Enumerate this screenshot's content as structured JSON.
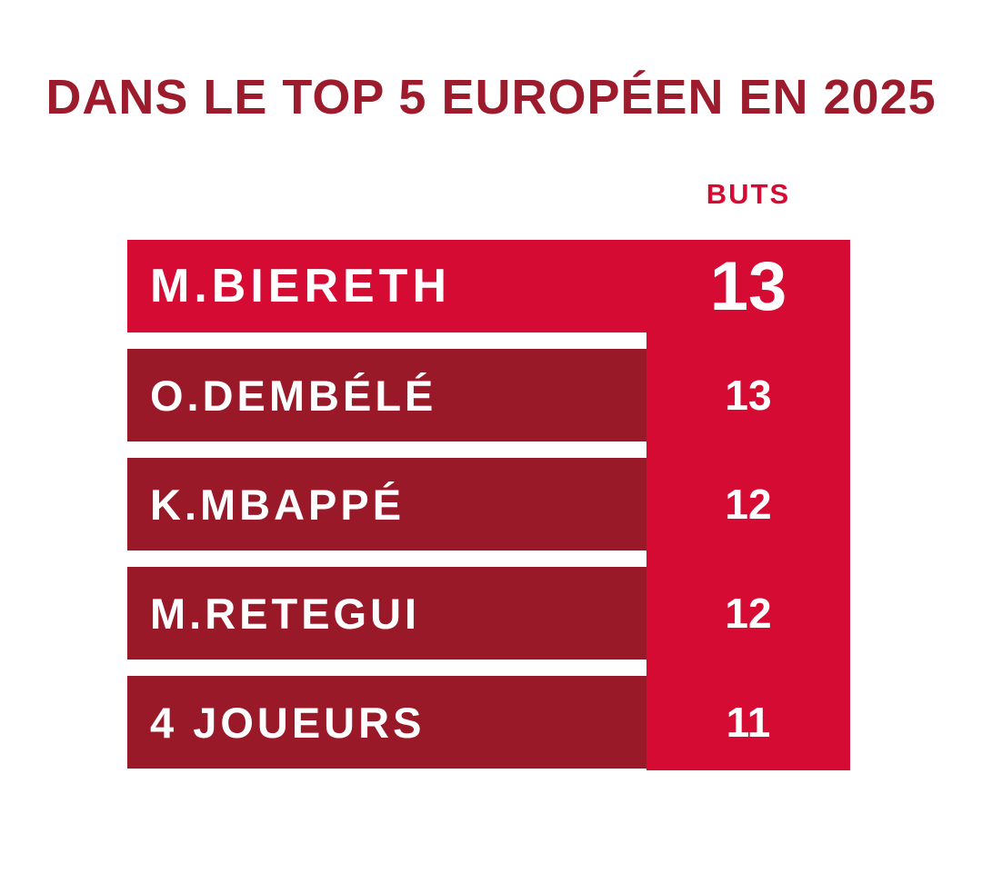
{
  "title": "DANS LE TOP 5 EUROPÉEN EN 2025",
  "colors": {
    "bright_red": "#D50B33",
    "dark_red": "#9A1928",
    "title_red": "#9C1B2C",
    "white": "#FFFFFF"
  },
  "chart_data": {
    "type": "bar",
    "title": "DANS LE TOP 5 EUROPÉEN EN 2025",
    "value_column_label": "BUTS",
    "orientation": "horizontal",
    "categories": [
      "M.BIERETH",
      "O.DEMBÉLÉ",
      "K.MBAPPÉ",
      "M.RETEGUI",
      "4 JOUEURS"
    ],
    "values": [
      13,
      13,
      12,
      12,
      11
    ],
    "highlight_index": 0,
    "rows": [
      {
        "name": "M.BIERETH",
        "value": "13"
      },
      {
        "name": "O.DEMBÉLÉ",
        "value": "13"
      },
      {
        "name": "K.MBAPPÉ",
        "value": "12"
      },
      {
        "name": "M.RETEGUI",
        "value": "12"
      },
      {
        "name": "4 JOUEURS",
        "value": "11"
      }
    ]
  }
}
